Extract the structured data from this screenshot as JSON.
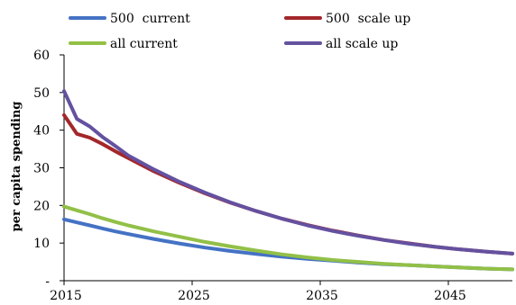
{
  "chart_data": {
    "type": "line",
    "title": "",
    "xlabel": "",
    "ylabel": "per capita spending",
    "xlim": [
      2015,
      2050
    ],
    "ylim": [
      0,
      60
    ],
    "x_ticks": [
      "2015",
      "2025",
      "2035",
      "2045"
    ],
    "y_ticks": [
      "-",
      "10",
      "20",
      "30",
      "40",
      "50",
      "60"
    ],
    "grid": false,
    "legend_position": "top",
    "x": [
      2015,
      2016,
      2017,
      2018,
      2019,
      2020,
      2022,
      2024,
      2026,
      2028,
      2030,
      2032,
      2034,
      2036,
      2038,
      2040,
      2042,
      2044,
      2046,
      2048,
      2050
    ],
    "series": [
      {
        "name": "500  current",
        "color": "#4472C4",
        "values": [
          16.3,
          15.5,
          14.7,
          13.9,
          13.1,
          12.4,
          11.1,
          9.9,
          8.8,
          7.9,
          7.1,
          6.4,
          5.8,
          5.3,
          4.8,
          4.4,
          4.1,
          3.8,
          3.5,
          3.2,
          3.0
        ]
      },
      {
        "name": "500  scale up",
        "color": "#A3272B",
        "values": [
          44.0,
          39.0,
          38.0,
          36.3,
          34.4,
          32.6,
          29.1,
          26.0,
          23.2,
          20.7,
          18.5,
          16.5,
          14.8,
          13.3,
          12.0,
          10.8,
          9.9,
          9.0,
          8.3,
          7.7,
          7.2
        ]
      },
      {
        "name": "all current",
        "color": "#92C047",
        "values": [
          19.7,
          18.7,
          17.7,
          16.6,
          15.6,
          14.7,
          13.1,
          11.7,
          10.3,
          9.1,
          8.0,
          7.0,
          6.2,
          5.5,
          5.0,
          4.5,
          4.1,
          3.8,
          3.5,
          3.2,
          3.0
        ]
      },
      {
        "name": "all scale up",
        "color": "#6451A0",
        "values": [
          50.4,
          43.0,
          41.0,
          38.2,
          35.8,
          33.3,
          29.6,
          26.3,
          23.4,
          20.8,
          18.5,
          16.5,
          14.7,
          13.2,
          11.9,
          10.8,
          9.8,
          9.0,
          8.3,
          7.7,
          7.2
        ]
      }
    ]
  }
}
